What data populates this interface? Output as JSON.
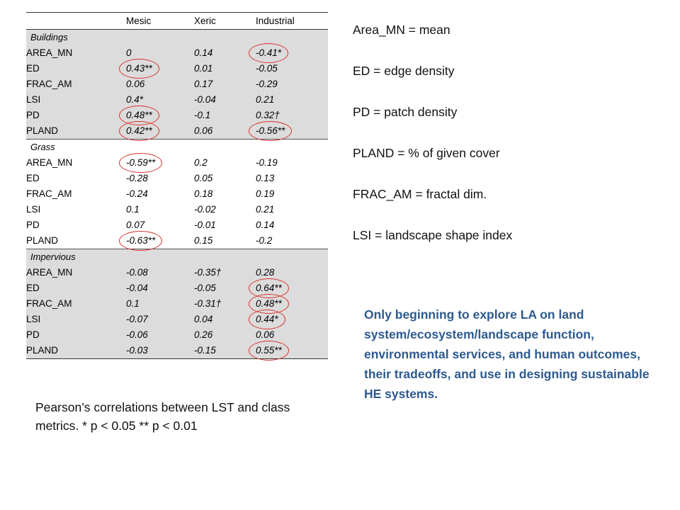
{
  "table": {
    "columns": [
      "",
      "Mesic",
      "Xeric",
      "Industrial"
    ],
    "groups": [
      {
        "name": "Buildings",
        "rows": [
          {
            "metric": "AREA_MN",
            "mesic": "0",
            "xeric": "0.14",
            "industrial": "-0.41*",
            "circled": [
              "industrial"
            ]
          },
          {
            "metric": "ED",
            "mesic": "0.43**",
            "xeric": "0.01",
            "industrial": "-0.05",
            "circled": [
              "mesic"
            ]
          },
          {
            "metric": "FRAC_AM",
            "mesic": "0.06",
            "xeric": "0.17",
            "industrial": "-0.29",
            "circled": []
          },
          {
            "metric": "LSI",
            "mesic": "0.4*",
            "xeric": "-0.04",
            "industrial": "0.21",
            "circled": []
          },
          {
            "metric": "PD",
            "mesic": "0.48**",
            "xeric": "-0.1",
            "industrial": "0.32†",
            "circled": [
              "mesic"
            ]
          },
          {
            "metric": "PLAND",
            "mesic": "0.42**",
            "xeric": "0.06",
            "industrial": "-0.56**",
            "circled": [
              "mesic",
              "industrial"
            ]
          }
        ]
      },
      {
        "name": "Grass",
        "rows": [
          {
            "metric": "AREA_MN",
            "mesic": "-0.59**",
            "xeric": "0.2",
            "industrial": "-0.19",
            "circled": [
              "mesic"
            ]
          },
          {
            "metric": "ED",
            "mesic": "-0.28",
            "xeric": "0.05",
            "industrial": "0.13",
            "circled": []
          },
          {
            "metric": "FRAC_AM",
            "mesic": "-0.24",
            "xeric": "0.18",
            "industrial": "0.19",
            "circled": []
          },
          {
            "metric": "LSI",
            "mesic": "0.1",
            "xeric": "-0.02",
            "industrial": "0.21",
            "circled": []
          },
          {
            "metric": "PD",
            "mesic": "0.07",
            "xeric": "-0.01",
            "industrial": "0.14",
            "circled": []
          },
          {
            "metric": "PLAND",
            "mesic": "-0.63**",
            "xeric": "0.15",
            "industrial": "-0.2",
            "circled": [
              "mesic"
            ]
          }
        ]
      },
      {
        "name": "Impervious",
        "rows": [
          {
            "metric": "AREA_MN",
            "mesic": "-0.08",
            "xeric": "-0.35†",
            "industrial": "0.28",
            "circled": []
          },
          {
            "metric": "ED",
            "mesic": "-0.04",
            "xeric": "-0.05",
            "industrial": "0.64**",
            "circled": [
              "industrial"
            ]
          },
          {
            "metric": "FRAC_AM",
            "mesic": "0.1",
            "xeric": "-0.31†",
            "industrial": "0.48**",
            "circled": [
              "industrial"
            ]
          },
          {
            "metric": "LSI",
            "mesic": "-0.07",
            "xeric": "0.04",
            "industrial": "0.44*",
            "circled": [
              "industrial"
            ]
          },
          {
            "metric": "PD",
            "mesic": "-0.06",
            "xeric": "0.26",
            "industrial": "0.06",
            "circled": []
          },
          {
            "metric": "PLAND",
            "mesic": "-0.03",
            "xeric": "-0.15",
            "industrial": "0.55**",
            "circled": [
              "industrial"
            ]
          }
        ]
      }
    ]
  },
  "caption": "Pearson’s correlations between LST and class metrics. * p < 0.05   ** p < 0.01",
  "definitions": [
    "Area_MN = mean",
    "ED = edge density",
    "PD = patch density",
    "PLAND = % of given cover",
    "FRAC_AM = fractal dim.",
    "LSI = landscape shape index"
  ],
  "note": "Only beginning to explore LA on land system/ecosystem/landscape function, environmental services, and human outcomes,  their tradeoffs, and use in designing sustainable HE systems.",
  "colors": {
    "shade": "#dcdcdc",
    "circle": "#d9322e",
    "note_text": "#2e5a8f"
  }
}
